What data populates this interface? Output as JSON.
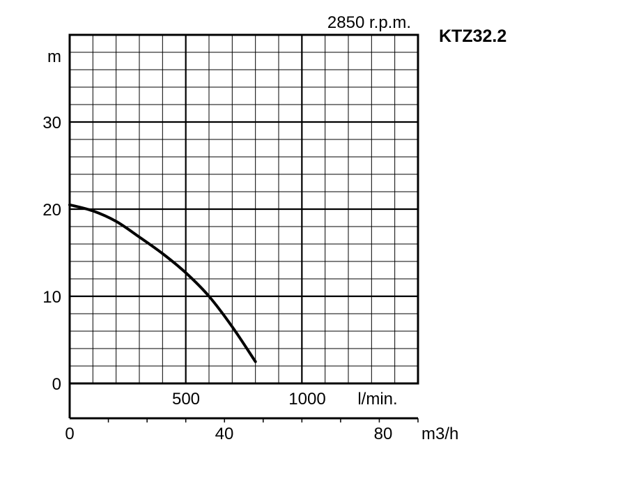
{
  "chart_data": {
    "type": "line",
    "model": "KTZ32.2",
    "speed_label": "2850 r.p.m.",
    "y_unit": "m",
    "x_unit_flow": "l/min.",
    "x_unit_hourly": "m3/h",
    "ylim": [
      0,
      40
    ],
    "xlim_lpm": [
      0,
      1500
    ],
    "xlim_m3h": [
      0,
      90
    ],
    "y_ticks": [
      "30",
      "20",
      "10",
      "0"
    ],
    "x_ticks_lpm": [
      "500",
      "1000"
    ],
    "x_ticks_m3h": [
      "0",
      "40",
      "80"
    ],
    "grid": true,
    "series": [
      {
        "x_lpm": [
          0,
          100,
          200,
          300,
          400,
          500,
          600,
          700,
          800
        ],
        "head_m": [
          20.5,
          19.8,
          18.6,
          16.8,
          14.9,
          12.7,
          10.0,
          6.5,
          2.5
        ]
      }
    ]
  }
}
